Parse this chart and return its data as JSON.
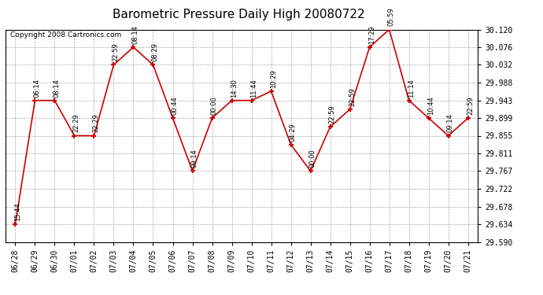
{
  "title": "Barometric Pressure Daily High 20080722",
  "copyright": "Copyright 2008 Cartronics.com",
  "background_color": "#ffffff",
  "plot_bg_color": "#ffffff",
  "grid_color": "#aaaaaa",
  "line_color": "#cc0000",
  "marker_color": "#cc0000",
  "x_labels": [
    "06/28",
    "06/29",
    "06/30",
    "07/01",
    "07/02",
    "07/03",
    "07/04",
    "07/05",
    "07/06",
    "07/07",
    "07/08",
    "07/09",
    "07/10",
    "07/11",
    "07/12",
    "07/13",
    "07/14",
    "07/15",
    "07/16",
    "07/17",
    "07/18",
    "07/19",
    "07/20",
    "07/21"
  ],
  "y_values": [
    29.634,
    29.943,
    29.943,
    29.855,
    29.855,
    30.032,
    30.076,
    30.032,
    29.899,
    29.767,
    29.899,
    29.943,
    29.943,
    29.966,
    29.833,
    29.767,
    29.877,
    29.921,
    30.076,
    30.12,
    29.943,
    29.899,
    29.855,
    29.899
  ],
  "point_labels": [
    "15:44",
    "06:14",
    "08:14",
    "22:29",
    "22:29",
    "22:59",
    "08:14",
    "08:29",
    "00:44",
    "09:14",
    "00:00",
    "14:30",
    "11:44",
    "10:29",
    "04:29",
    "00:00",
    "22:59",
    "22:59",
    "17:29",
    "05:59",
    "11:14",
    "10:44",
    "09:14",
    "22:59"
  ],
  "ylim_min": 29.59,
  "ylim_max": 30.12,
  "yticks": [
    29.59,
    29.634,
    29.678,
    29.722,
    29.767,
    29.811,
    29.855,
    29.899,
    29.943,
    29.988,
    30.032,
    30.076,
    30.12
  ],
  "title_fontsize": 11,
  "label_fontsize": 6,
  "tick_fontsize": 7,
  "copyright_fontsize": 6.5
}
